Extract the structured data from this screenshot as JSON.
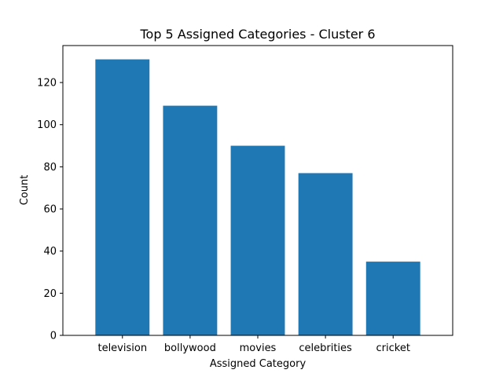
{
  "chart_data": {
    "type": "bar",
    "title": "Top 5 Assigned Categories - Cluster 6",
    "xlabel": "Assigned Category",
    "ylabel": "Count",
    "categories": [
      "television",
      "bollywood",
      "movies",
      "celebrities",
      "cricket"
    ],
    "values": [
      131,
      109,
      90,
      77,
      35
    ],
    "ylim": [
      0,
      137.55
    ],
    "yticks": [
      "0",
      "20",
      "40",
      "60",
      "80",
      "100",
      "120"
    ],
    "bar_color": "#1f77b4",
    "grid": false,
    "legend": false
  }
}
